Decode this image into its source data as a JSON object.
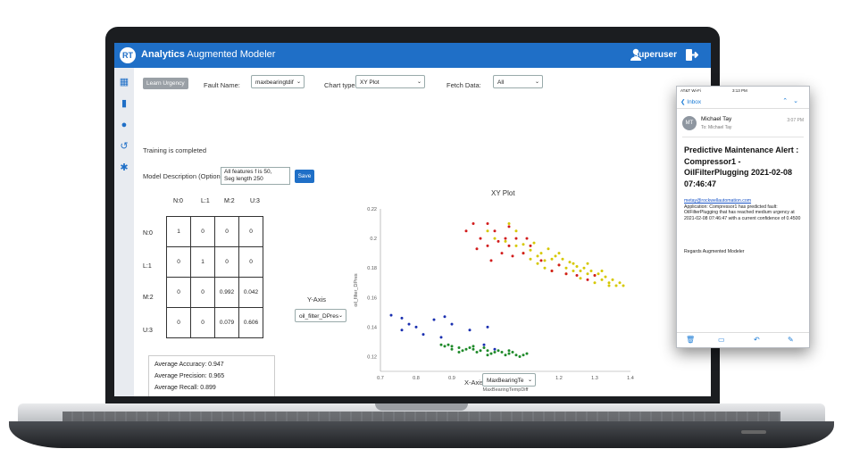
{
  "app": {
    "logo_text": "RT",
    "brand_bold": "Analytics",
    "brand_rest": " Augmented Modeler",
    "user": "superuser"
  },
  "toolbar": {
    "learn_urgency": "Learn Urgency",
    "fault_name_label": "Fault Name:",
    "fault_name_value": "maxbearingtdif",
    "chart_type_label": "Chart type:",
    "chart_type_value": "XY Plot",
    "fetch_label": "Fetch Data:",
    "fetch_value": "All"
  },
  "status": "Training is completed",
  "description": {
    "label": "Model Description (Optional):",
    "line1": "All features f is 50,",
    "line2": "Seg length 250",
    "save_label": "Save"
  },
  "confusion": {
    "cols": [
      "N:0",
      "L:1",
      "M:2",
      "U:3"
    ],
    "rows": [
      {
        "label": "N:0",
        "cells": [
          "1",
          "0",
          "0",
          "0"
        ]
      },
      {
        "label": "L:1",
        "cells": [
          "0",
          "1",
          "0",
          "0"
        ]
      },
      {
        "label": "M:2",
        "cells": [
          "0",
          "0",
          "0.992",
          "0.042"
        ]
      },
      {
        "label": "U:3",
        "cells": [
          "0",
          "0",
          "0.079",
          "0.606"
        ]
      }
    ]
  },
  "metrics": {
    "accuracy": "Average Accuracy: 0.947",
    "precision": "Average Precision: 0.965",
    "recall": "Average Recall: 0.899"
  },
  "axes_ctrl": {
    "y_label": "Y-Axis",
    "y_value": "oil_filter_DPres",
    "x_label": "X-Axis:",
    "x_value": "MaxBearingTe"
  },
  "chart_data": {
    "type": "scatter",
    "title": "XY Plot",
    "xlabel": "MaxBearingTempDiff",
    "ylabel": "oil_filter_DPres",
    "xlim": [
      0.7,
      1.4
    ],
    "ylim": [
      0.11,
      0.22
    ],
    "xticks": [
      "0.7",
      "0.8",
      "0.9",
      "1",
      "1.1",
      "1.2",
      "1.3",
      "1.4"
    ],
    "yticks": [
      "0.22",
      "0.2",
      "0.18",
      "0.16",
      "0.14",
      "0.12"
    ],
    "series": [
      {
        "color": "#1a2fb0",
        "points": [
          [
            0.73,
            0.148
          ],
          [
            0.76,
            0.146
          ],
          [
            0.78,
            0.142
          ],
          [
            0.8,
            0.14
          ],
          [
            0.85,
            0.145
          ],
          [
            0.88,
            0.147
          ],
          [
            0.9,
            0.142
          ],
          [
            0.95,
            0.138
          ],
          [
            1.0,
            0.14
          ],
          [
            0.76,
            0.138
          ],
          [
            0.82,
            0.135
          ],
          [
            0.87,
            0.133
          ],
          [
            0.99,
            0.128
          ],
          [
            1.02,
            0.125
          ]
        ]
      },
      {
        "color": "#1f8a2a",
        "points": [
          [
            0.88,
            0.127
          ],
          [
            0.9,
            0.127
          ],
          [
            0.92,
            0.126
          ],
          [
            0.94,
            0.125
          ],
          [
            0.96,
            0.125
          ],
          [
            0.98,
            0.124
          ],
          [
            1.0,
            0.124
          ],
          [
            1.02,
            0.123
          ],
          [
            1.04,
            0.123
          ],
          [
            1.06,
            0.122
          ],
          [
            1.08,
            0.121
          ],
          [
            1.1,
            0.121
          ],
          [
            0.9,
            0.125
          ],
          [
            0.93,
            0.124
          ],
          [
            0.97,
            0.123
          ],
          [
            1.01,
            0.122
          ],
          [
            1.05,
            0.121
          ],
          [
            1.09,
            0.12
          ],
          [
            0.89,
            0.128
          ],
          [
            0.95,
            0.126
          ],
          [
            0.99,
            0.126
          ],
          [
            1.03,
            0.124
          ],
          [
            1.07,
            0.123
          ],
          [
            1.11,
            0.122
          ],
          [
            0.87,
            0.128
          ],
          [
            0.92,
            0.123
          ],
          [
            1.0,
            0.121
          ],
          [
            0.96,
            0.127
          ],
          [
            1.06,
            0.124
          ]
        ]
      },
      {
        "color": "#d6c800",
        "points": [
          [
            1.0,
            0.205
          ],
          [
            1.02,
            0.2
          ],
          [
            1.05,
            0.198
          ],
          [
            1.08,
            0.195
          ],
          [
            1.1,
            0.19
          ],
          [
            1.12,
            0.192
          ],
          [
            1.14,
            0.188
          ],
          [
            1.16,
            0.185
          ],
          [
            1.18,
            0.186
          ],
          [
            1.2,
            0.182
          ],
          [
            1.22,
            0.18
          ],
          [
            1.24,
            0.183
          ],
          [
            1.26,
            0.178
          ],
          [
            1.28,
            0.176
          ],
          [
            1.3,
            0.175
          ],
          [
            1.32,
            0.172
          ],
          [
            1.34,
            0.17
          ],
          [
            1.36,
            0.168
          ],
          [
            1.15,
            0.19
          ],
          [
            1.17,
            0.193
          ],
          [
            1.19,
            0.188
          ],
          [
            1.21,
            0.186
          ],
          [
            1.23,
            0.184
          ],
          [
            1.25,
            0.181
          ],
          [
            1.27,
            0.18
          ],
          [
            1.29,
            0.178
          ],
          [
            1.31,
            0.176
          ],
          [
            1.33,
            0.174
          ],
          [
            1.35,
            0.172
          ],
          [
            1.37,
            0.17
          ],
          [
            1.38,
            0.168
          ],
          [
            1.12,
            0.186
          ],
          [
            1.14,
            0.183
          ],
          [
            1.16,
            0.18
          ],
          [
            1.18,
            0.178
          ],
          [
            1.22,
            0.176
          ],
          [
            1.26,
            0.173
          ],
          [
            1.3,
            0.17
          ],
          [
            1.34,
            0.168
          ],
          [
            1.1,
            0.196
          ],
          [
            1.13,
            0.197
          ],
          [
            1.06,
            0.21
          ],
          [
            1.08,
            0.205
          ],
          [
            1.28,
            0.183
          ],
          [
            1.2,
            0.19
          ],
          [
            1.24,
            0.178
          ],
          [
            1.32,
            0.178
          ]
        ]
      },
      {
        "color": "#d21c1c",
        "points": [
          [
            0.94,
            0.205
          ],
          [
            0.96,
            0.21
          ],
          [
            0.98,
            0.2
          ],
          [
            1.0,
            0.195
          ],
          [
            1.02,
            0.205
          ],
          [
            1.04,
            0.19
          ],
          [
            1.05,
            0.2
          ],
          [
            1.06,
            0.195
          ],
          [
            1.08,
            0.2
          ],
          [
            1.1,
            0.19
          ],
          [
            1.12,
            0.195
          ],
          [
            1.15,
            0.185
          ],
          [
            1.18,
            0.178
          ],
          [
            1.2,
            0.182
          ],
          [
            1.25,
            0.175
          ],
          [
            1.28,
            0.172
          ],
          [
            1.3,
            0.175
          ],
          [
            0.97,
            0.193
          ],
          [
            1.01,
            0.185
          ],
          [
            1.03,
            0.198
          ],
          [
            1.07,
            0.188
          ],
          [
            1.11,
            0.2
          ],
          [
            1.0,
            0.21
          ],
          [
            1.06,
            0.208
          ],
          [
            1.22,
            0.176
          ]
        ]
      }
    ]
  },
  "email": {
    "status_left": "AT&T Wi-Fi",
    "status_time": "3:13 PM",
    "back": "Inbox",
    "avatar": "MT",
    "from": "Michael Tay",
    "to": "To: Michael Tay",
    "time": "3:07 PM",
    "subject": "Predictive Maintenance Alert : Compressor1 - OilFilterPlugging 2021-02-08 07:46:47",
    "sender_link": "metay@rockwellautomation.com",
    "body": "Application: Compressor1 has predicted fault: OilFilterPlugging that has reached medium urgency at 2021-02-08 07:46:47 with a current confidence of 0.4500",
    "regards": "Regards Augmented Modeler"
  },
  "colors": {
    "accent": "#1f6fc7",
    "header": "#1f6fc7"
  }
}
